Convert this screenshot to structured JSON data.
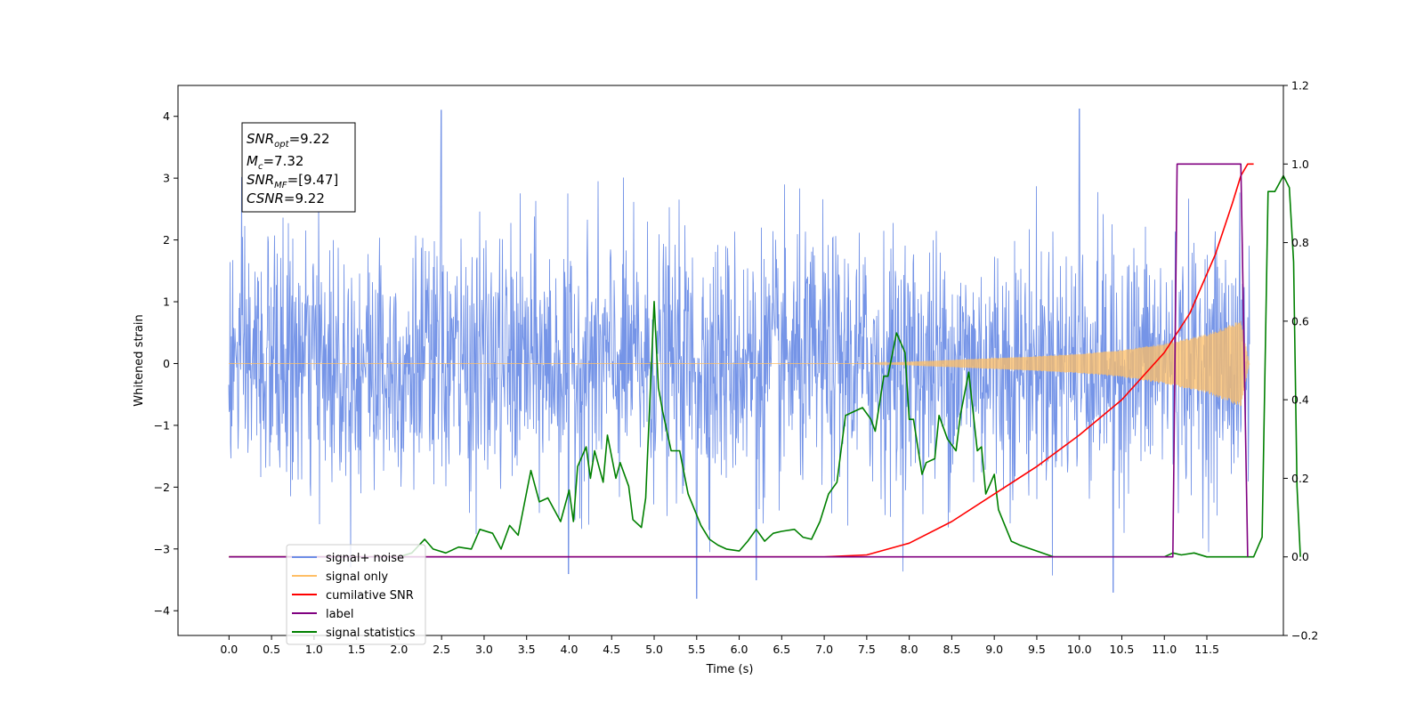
{
  "chart_data": {
    "type": "line",
    "xlabel": "Time (s)",
    "ylabel": "Whitened strain",
    "xlim": [
      -0.6,
      12.4
    ],
    "ylim": [
      -4.4,
      4.5
    ],
    "ylim_right": [
      -0.2,
      1.2
    ],
    "x_ticks": [
      "0.0",
      "0.5",
      "1.0",
      "1.5",
      "2.0",
      "2.5",
      "3.0",
      "3.5",
      "4.0",
      "4.5",
      "5.0",
      "5.5",
      "6.0",
      "6.5",
      "7.0",
      "7.5",
      "8.0",
      "8.5",
      "9.0",
      "9.5",
      "10.0",
      "10.5",
      "11.0",
      "11.5"
    ],
    "y_ticks_left": [
      "4",
      "3",
      "2",
      "1",
      "0",
      "−1",
      "−2",
      "−3",
      "−4"
    ],
    "y_ticks_right": [
      "1.2",
      "1.0",
      "0.8",
      "0.6",
      "0.4",
      "0.2",
      "0.0",
      "−0.2"
    ],
    "annotation": {
      "lines": [
        {
          "base": "SNR",
          "sub": "opt",
          "rest": "=9.22"
        },
        {
          "base": "M",
          "sub": "c",
          "rest": "=7.32"
        },
        {
          "base": "SNR",
          "sub": "MF",
          "rest": "=[9.47]"
        },
        {
          "base": "CSNR",
          "sub": "",
          "rest": "=9.22"
        }
      ]
    },
    "legend": {
      "placement": "lower-left",
      "entries": [
        {
          "label": "signal+ noise",
          "color": "#6e8ee6"
        },
        {
          "label": "signal only",
          "color": "#ffbf66"
        },
        {
          "label": "cumilative SNR",
          "color": "#ff0000"
        },
        {
          "label": "label",
          "color": "#800080"
        },
        {
          "label": "signal statistics",
          "color": "#008000"
        }
      ]
    },
    "series": [
      {
        "name": "signal+ noise",
        "axis": "left",
        "color": "#6e8ee6",
        "x_range": [
          0.0,
          12.0
        ],
        "noise_sigma": 1.3,
        "spikes": [
          [
            2.5,
            4.1
          ],
          [
            10.0,
            4.12
          ],
          [
            5.5,
            -3.8
          ],
          [
            10.4,
            -3.7
          ],
          [
            4.0,
            -3.4
          ],
          [
            6.2,
            -3.5
          ]
        ]
      },
      {
        "name": "signal only",
        "axis": "left",
        "color": "#ffbf66",
        "envelope": [
          [
            0.0,
            0.0
          ],
          [
            7.5,
            0.0
          ],
          [
            8.0,
            0.03
          ],
          [
            8.5,
            0.06
          ],
          [
            9.0,
            0.09
          ],
          [
            9.5,
            0.12
          ],
          [
            10.0,
            0.16
          ],
          [
            10.5,
            0.22
          ],
          [
            11.0,
            0.33
          ],
          [
            11.5,
            0.48
          ],
          [
            11.9,
            0.7
          ],
          [
            12.0,
            0.0
          ]
        ]
      },
      {
        "name": "cumilative SNR",
        "axis": "right",
        "color": "#ff0000",
        "points": [
          [
            0.0,
            0.0
          ],
          [
            7.0,
            0.0
          ],
          [
            7.5,
            0.005
          ],
          [
            8.0,
            0.035
          ],
          [
            8.5,
            0.09
          ],
          [
            9.0,
            0.16
          ],
          [
            9.5,
            0.23
          ],
          [
            10.0,
            0.31
          ],
          [
            10.5,
            0.4
          ],
          [
            11.0,
            0.52
          ],
          [
            11.3,
            0.62
          ],
          [
            11.6,
            0.77
          ],
          [
            11.8,
            0.9
          ],
          [
            11.9,
            0.97
          ],
          [
            11.98,
            1.0
          ],
          [
            12.05,
            1.0
          ]
        ]
      },
      {
        "name": "label",
        "axis": "right",
        "color": "#800080",
        "points": [
          [
            0.0,
            0.0
          ],
          [
            11.1,
            0.0
          ],
          [
            11.15,
            1.0
          ],
          [
            11.9,
            1.0
          ],
          [
            11.98,
            0.0
          ]
        ]
      },
      {
        "name": "signal statistics",
        "axis": "right",
        "color": "#008000",
        "points": [
          [
            0.0,
            0.0
          ],
          [
            2.0,
            0.0
          ],
          [
            2.15,
            0.01
          ],
          [
            2.3,
            0.045
          ],
          [
            2.4,
            0.02
          ],
          [
            2.55,
            0.01
          ],
          [
            2.7,
            0.025
          ],
          [
            2.85,
            0.02
          ],
          [
            2.95,
            0.07
          ],
          [
            3.1,
            0.06
          ],
          [
            3.2,
            0.02
          ],
          [
            3.3,
            0.08
          ],
          [
            3.4,
            0.055
          ],
          [
            3.55,
            0.22
          ],
          [
            3.65,
            0.14
          ],
          [
            3.75,
            0.15
          ],
          [
            3.9,
            0.09
          ],
          [
            4.0,
            0.17
          ],
          [
            4.05,
            0.09
          ],
          [
            4.1,
            0.23
          ],
          [
            4.2,
            0.28
          ],
          [
            4.25,
            0.2
          ],
          [
            4.3,
            0.27
          ],
          [
            4.4,
            0.19
          ],
          [
            4.45,
            0.31
          ],
          [
            4.55,
            0.2
          ],
          [
            4.6,
            0.24
          ],
          [
            4.7,
            0.18
          ],
          [
            4.75,
            0.095
          ],
          [
            4.85,
            0.075
          ],
          [
            4.9,
            0.15
          ],
          [
            5.0,
            0.65
          ],
          [
            5.05,
            0.43
          ],
          [
            5.1,
            0.37
          ],
          [
            5.2,
            0.27
          ],
          [
            5.3,
            0.27
          ],
          [
            5.4,
            0.16
          ],
          [
            5.55,
            0.08
          ],
          [
            5.65,
            0.045
          ],
          [
            5.75,
            0.03
          ],
          [
            5.85,
            0.02
          ],
          [
            6.0,
            0.015
          ],
          [
            6.1,
            0.04
          ],
          [
            6.2,
            0.07
          ],
          [
            6.3,
            0.04
          ],
          [
            6.4,
            0.06
          ],
          [
            6.5,
            0.065
          ],
          [
            6.65,
            0.07
          ],
          [
            6.75,
            0.05
          ],
          [
            6.85,
            0.045
          ],
          [
            6.95,
            0.09
          ],
          [
            7.05,
            0.16
          ],
          [
            7.15,
            0.19
          ],
          [
            7.25,
            0.36
          ],
          [
            7.35,
            0.37
          ],
          [
            7.45,
            0.38
          ],
          [
            7.55,
            0.35
          ],
          [
            7.6,
            0.32
          ],
          [
            7.7,
            0.46
          ],
          [
            7.75,
            0.46
          ],
          [
            7.85,
            0.57
          ],
          [
            7.95,
            0.52
          ],
          [
            8.0,
            0.35
          ],
          [
            8.05,
            0.35
          ],
          [
            8.15,
            0.21
          ],
          [
            8.2,
            0.24
          ],
          [
            8.3,
            0.25
          ],
          [
            8.35,
            0.36
          ],
          [
            8.45,
            0.3
          ],
          [
            8.55,
            0.27
          ],
          [
            8.6,
            0.36
          ],
          [
            8.7,
            0.47
          ],
          [
            8.8,
            0.27
          ],
          [
            8.85,
            0.28
          ],
          [
            8.9,
            0.16
          ],
          [
            9.0,
            0.21
          ],
          [
            9.05,
            0.12
          ],
          [
            9.2,
            0.04
          ],
          [
            9.3,
            0.03
          ],
          [
            9.5,
            0.015
          ],
          [
            9.7,
            0.0
          ],
          [
            9.8,
            0.0
          ],
          [
            10.0,
            0.0
          ],
          [
            11.0,
            0.0
          ],
          [
            11.1,
            0.01
          ],
          [
            11.2,
            0.005
          ],
          [
            11.35,
            0.01
          ],
          [
            11.5,
            0.0
          ],
          [
            11.8,
            0.0
          ],
          [
            12.05,
            0.0
          ],
          [
            12.15,
            0.05
          ],
          [
            12.22,
            0.93
          ],
          [
            12.3,
            0.93
          ],
          [
            12.35,
            0.95
          ],
          [
            12.4,
            0.97
          ],
          [
            12.47,
            0.94
          ],
          [
            12.52,
            0.75
          ],
          [
            12.56,
            0.18
          ],
          [
            12.6,
            0.0
          ]
        ]
      }
    ]
  }
}
